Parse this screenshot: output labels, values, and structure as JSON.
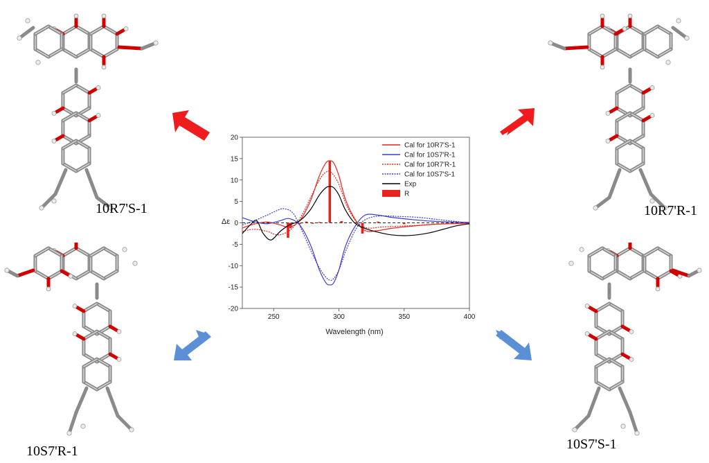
{
  "labels": {
    "top_left": "10R7'S-1",
    "top_right": "10R7'R-1",
    "bottom_left": "10S7'R-1",
    "bottom_right": "10S7'S-1"
  },
  "colors": {
    "red": "#e8231d",
    "blue": "#3a3ad0",
    "arrow_red": "#ee1c1c",
    "arrow_blue": "#5b8fd6",
    "bond_gray": "#8a8a8a",
    "oxygen_red": "#d00000"
  },
  "icons": [
    "molecule-3d-icon",
    "arrow-icon"
  ],
  "chart_data": {
    "type": "line",
    "title": "",
    "xlabel": "Wavelength (nm)",
    "ylabel": "Δε",
    "xlim": [
      226,
      400
    ],
    "ylim": [
      -20,
      20
    ],
    "xticks": [
      250,
      300,
      350,
      400
    ],
    "yticks": [
      -20,
      -15,
      -10,
      -5,
      0,
      5,
      10,
      15,
      20
    ],
    "grid": false,
    "legend_position": "top-right",
    "series": [
      {
        "name": "Cal for 10R7'S-1",
        "color": "#e8231d",
        "dash": "solid",
        "x": [
          226,
          235,
          245,
          255,
          262,
          270,
          278,
          285,
          290,
          293,
          296,
          300,
          305,
          312,
          320,
          330,
          340,
          355,
          370,
          385,
          400
        ],
        "y": [
          -1.2,
          -0.3,
          0.2,
          -0.5,
          -1.0,
          0.5,
          5,
          11,
          14,
          14.5,
          14,
          11,
          5.5,
          1,
          -1.8,
          -1.8,
          -1.3,
          -0.8,
          -0.4,
          -0.2,
          -0.1
        ]
      },
      {
        "name": "Cal for 10S7'R-1",
        "color": "#3a3ad0",
        "dash": "solid",
        "x": [
          226,
          235,
          245,
          255,
          262,
          270,
          278,
          285,
          290,
          293,
          296,
          300,
          305,
          312,
          320,
          330,
          340,
          355,
          370,
          385,
          400
        ],
        "y": [
          1.2,
          0.3,
          -0.2,
          0.5,
          1.0,
          -0.5,
          -5,
          -11,
          -14,
          -14.5,
          -14,
          -11,
          -5.5,
          -1,
          1.8,
          1.8,
          1.3,
          0.8,
          0.4,
          0.2,
          0.1
        ]
      },
      {
        "name": "Cal for 10R7'R-1",
        "color": "#e8231d",
        "dash": "dotted",
        "x": [
          226,
          235,
          245,
          252,
          258,
          265,
          272,
          280,
          286,
          291,
          295,
          300,
          306,
          314,
          322,
          332,
          345,
          360,
          375,
          390,
          400
        ],
        "y": [
          -2,
          -1.5,
          -2,
          -2.8,
          -2.5,
          -1,
          2,
          7,
          10.5,
          12,
          11.5,
          9,
          4,
          0,
          -1.2,
          -1,
          -0.8,
          -0.6,
          -0.3,
          -0.1,
          0
        ]
      },
      {
        "name": "Cal for 10S7'S-1",
        "color": "#3a3ad0",
        "dash": "dotted",
        "x": [
          226,
          235,
          245,
          252,
          258,
          265,
          272,
          280,
          286,
          291,
          295,
          300,
          306,
          314,
          322,
          332,
          345,
          360,
          375,
          390,
          400
        ],
        "y": [
          -0.5,
          0.5,
          1.8,
          2.8,
          3.3,
          2.2,
          -2,
          -7.5,
          -11,
          -13,
          -13.3,
          -11,
          -6,
          -1,
          1,
          1.6,
          1.5,
          1.3,
          0.8,
          0.3,
          0
        ]
      },
      {
        "name": "Exp",
        "color": "#000000",
        "dash": "solid",
        "x": [
          226,
          232,
          237,
          242,
          248,
          255,
          262,
          270,
          278,
          285,
          290,
          293,
          296,
          300,
          305,
          312,
          320,
          330,
          340,
          350,
          360,
          370,
          380,
          390,
          400
        ],
        "y": [
          -2.5,
          -0.5,
          0.5,
          -2.5,
          -4,
          -2,
          -0.5,
          0.5,
          3,
          6.5,
          8.2,
          8.5,
          8.2,
          6.5,
          3,
          0,
          -1.3,
          -2.2,
          -2.8,
          -3,
          -2.8,
          -2.3,
          -1.5,
          -0.7,
          -0.2
        ]
      }
    ],
    "bars": {
      "name": "R",
      "color": "#e8231d",
      "x": [
        261,
        263,
        270,
        275,
        280,
        285,
        293,
        302,
        318,
        330,
        350
      ],
      "y": [
        -3.5,
        -1.2,
        -0.3,
        0.3,
        -0.2,
        0.2,
        14.5,
        0.4,
        -2.5,
        0.3,
        -0.3
      ]
    }
  }
}
